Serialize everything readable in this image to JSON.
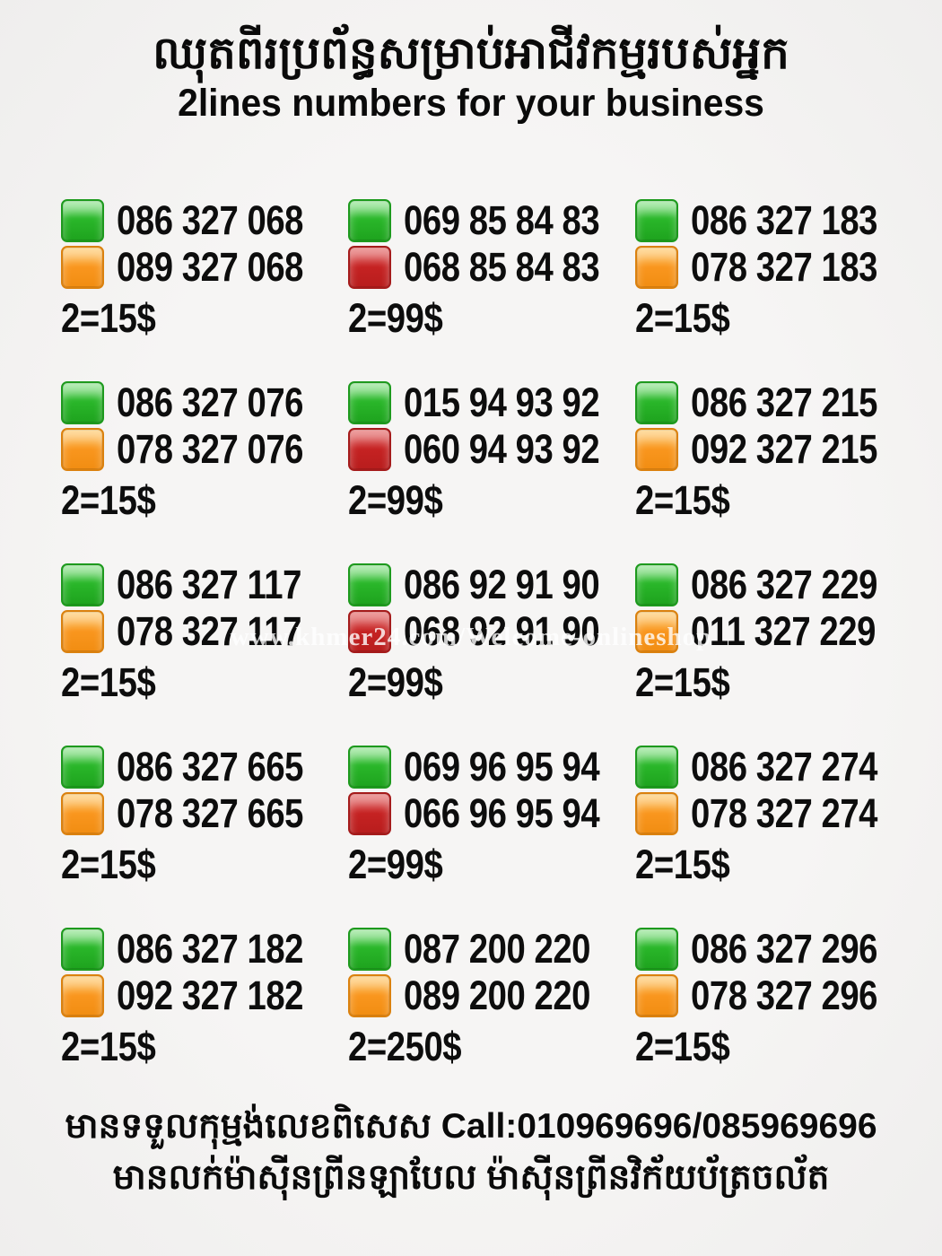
{
  "header": {
    "title_khmer": "ឈុតពីរប្រព័ន្ធសម្រាប់អាជីវកម្មរបស់អ្នក",
    "subtitle": "2lines numbers for your business"
  },
  "watermark": {
    "text": "www.khmer24.com/Welcome-onlineshop"
  },
  "colors": {
    "green": "#22b122",
    "orange": "#f8961e",
    "red": "#c42222",
    "background": "#f4f3f2",
    "text": "#0d0d0d"
  },
  "listings": [
    {
      "lines": [
        {
          "color": "green",
          "number": "086 327 068"
        },
        {
          "color": "orange",
          "number": "089 327 068"
        }
      ],
      "price": "2=15$"
    },
    {
      "lines": [
        {
          "color": "green",
          "number": "069 85 84 83"
        },
        {
          "color": "red",
          "number": "068 85 84 83"
        }
      ],
      "price": "2=99$"
    },
    {
      "lines": [
        {
          "color": "green",
          "number": "086 327 183"
        },
        {
          "color": "orange",
          "number": "078 327 183"
        }
      ],
      "price": "2=15$"
    },
    {
      "lines": [
        {
          "color": "green",
          "number": "086 327 076"
        },
        {
          "color": "orange",
          "number": "078 327 076"
        }
      ],
      "price": "2=15$"
    },
    {
      "lines": [
        {
          "color": "green",
          "number": "015 94 93 92"
        },
        {
          "color": "red",
          "number": "060 94 93 92"
        }
      ],
      "price": "2=99$"
    },
    {
      "lines": [
        {
          "color": "green",
          "number": "086 327 215"
        },
        {
          "color": "orange",
          "number": "092 327 215"
        }
      ],
      "price": "2=15$"
    },
    {
      "lines": [
        {
          "color": "green",
          "number": "086 327 117"
        },
        {
          "color": "orange",
          "number": "078 327 117"
        }
      ],
      "price": "2=15$"
    },
    {
      "lines": [
        {
          "color": "green",
          "number": "086 92 91 90"
        },
        {
          "color": "red",
          "number": "068 92 91 90"
        }
      ],
      "price": "2=99$"
    },
    {
      "lines": [
        {
          "color": "green",
          "number": "086 327 229"
        },
        {
          "color": "orange",
          "number": "011 327 229"
        }
      ],
      "price": "2=15$"
    },
    {
      "lines": [
        {
          "color": "green",
          "number": "086 327 665"
        },
        {
          "color": "orange",
          "number": "078 327 665"
        }
      ],
      "price": "2=15$"
    },
    {
      "lines": [
        {
          "color": "green",
          "number": "069 96 95 94"
        },
        {
          "color": "red",
          "number": "066 96 95 94"
        }
      ],
      "price": "2=99$"
    },
    {
      "lines": [
        {
          "color": "green",
          "number": "086 327 274"
        },
        {
          "color": "orange",
          "number": "078 327 274"
        }
      ],
      "price": "2=15$"
    },
    {
      "lines": [
        {
          "color": "green",
          "number": "086 327 182"
        },
        {
          "color": "orange",
          "number": "092 327 182"
        }
      ],
      "price": "2=15$"
    },
    {
      "lines": [
        {
          "color": "green",
          "number": "087 200 220"
        },
        {
          "color": "orange",
          "number": "089 200 220"
        }
      ],
      "price": "2=250$"
    },
    {
      "lines": [
        {
          "color": "green",
          "number": "086 327 296"
        },
        {
          "color": "orange",
          "number": "078 327 296"
        }
      ],
      "price": "2=15$"
    }
  ],
  "footer": {
    "line1": "មានទទួលកុម្មង់លេខពិសេស Call:010969696/085969696",
    "line2": "មានលក់ម៉ាស៊ីនព្រីនឡាបែល ម៉ាស៊ីនព្រីនវិក័យប័ត្រចល័ត"
  }
}
